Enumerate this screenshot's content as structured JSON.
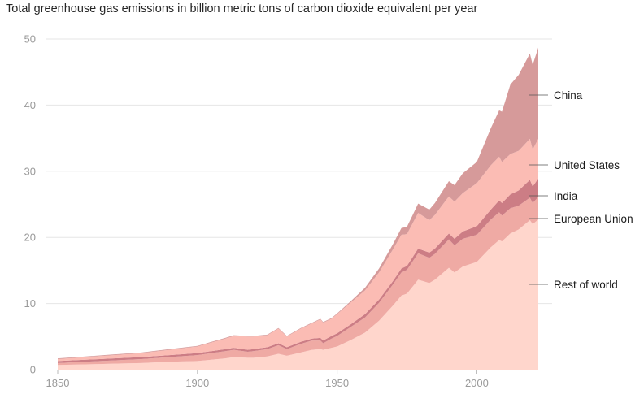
{
  "chart_data": {
    "type": "area",
    "stacked": true,
    "title": "Total greenhouse gas emissions in billion metric tons of carbon dioxide equivalent per year",
    "xlabel": "",
    "ylabel": "",
    "xlim": [
      1850,
      2022
    ],
    "ylim": [
      0,
      50
    ],
    "x_ticks": [
      "1850",
      "1900",
      "1950",
      "2000"
    ],
    "y_ticks": [
      "0",
      "10",
      "20",
      "30",
      "40",
      "50"
    ],
    "grid": true,
    "legend": "right, direct labels",
    "x": [
      1850,
      1860,
      1870,
      1880,
      1890,
      1900,
      1905,
      1910,
      1913,
      1918,
      1920,
      1925,
      1929,
      1932,
      1937,
      1941,
      1944,
      1945,
      1948,
      1950,
      1955,
      1960,
      1965,
      1970,
      1973,
      1975,
      1979,
      1983,
      1985,
      1990,
      1992,
      1995,
      2000,
      2005,
      2008,
      2009,
      2012,
      2015,
      2019,
      2020,
      2022
    ],
    "series": [
      {
        "name": "Rest of world",
        "color": "#ffd6cc",
        "values": [
          0.7,
          0.8,
          0.9,
          1.0,
          1.2,
          1.3,
          1.5,
          1.7,
          1.9,
          1.8,
          1.8,
          2.0,
          2.4,
          2.1,
          2.6,
          3.0,
          3.1,
          3.0,
          3.3,
          3.5,
          4.5,
          5.6,
          7.4,
          9.7,
          11.2,
          11.5,
          13.6,
          13.1,
          13.6,
          15.4,
          14.7,
          15.6,
          16.3,
          18.5,
          19.6,
          19.4,
          20.6,
          21.2,
          22.6,
          22.0,
          22.7
        ]
      },
      {
        "name": "European Union",
        "color": "#efaaa4",
        "values": [
          0.3,
          0.4,
          0.5,
          0.6,
          0.7,
          0.9,
          1.0,
          1.1,
          1.1,
          0.9,
          1.0,
          1.1,
          1.3,
          1.0,
          1.3,
          1.4,
          1.3,
          1.0,
          1.4,
          1.6,
          2.0,
          2.3,
          2.7,
          3.2,
          3.5,
          3.6,
          4.0,
          3.8,
          3.9,
          4.3,
          4.1,
          4.2,
          4.1,
          4.2,
          4.2,
          3.9,
          3.8,
          3.6,
          3.4,
          3.2,
          3.4
        ]
      },
      {
        "name": "India",
        "color": "#cc7d85",
        "values": [
          0.3,
          0.3,
          0.3,
          0.3,
          0.3,
          0.3,
          0.3,
          0.3,
          0.3,
          0.3,
          0.3,
          0.3,
          0.3,
          0.3,
          0.3,
          0.3,
          0.4,
          0.4,
          0.4,
          0.4,
          0.4,
          0.5,
          0.5,
          0.5,
          0.6,
          0.6,
          0.7,
          0.8,
          0.8,
          0.9,
          1.0,
          1.1,
          1.3,
          1.5,
          1.8,
          1.9,
          2.1,
          2.3,
          2.7,
          2.5,
          2.8
        ]
      },
      {
        "name": "United States",
        "color": "#fbbcb4",
        "values": [
          0.3,
          0.4,
          0.5,
          0.6,
          0.8,
          1.0,
          1.3,
          1.6,
          1.8,
          2.0,
          1.9,
          1.8,
          2.2,
          1.6,
          2.0,
          2.3,
          2.8,
          2.7,
          2.6,
          2.9,
          3.3,
          3.6,
          4.1,
          4.8,
          5.1,
          4.8,
          5.4,
          4.9,
          5.1,
          5.6,
          5.6,
          5.8,
          6.5,
          6.7,
          6.6,
          6.2,
          6.1,
          6.0,
          6.2,
          5.6,
          6.0
        ]
      },
      {
        "name": "China",
        "color": "#d69a9a",
        "values": [
          0.1,
          0.1,
          0.1,
          0.1,
          0.1,
          0.1,
          0.1,
          0.1,
          0.1,
          0.1,
          0.1,
          0.1,
          0.1,
          0.1,
          0.1,
          0.1,
          0.1,
          0.1,
          0.1,
          0.1,
          0.2,
          0.4,
          0.6,
          0.8,
          1.0,
          1.1,
          1.4,
          1.6,
          1.8,
          2.3,
          2.5,
          3.0,
          3.2,
          5.6,
          7.0,
          7.6,
          10.5,
          11.5,
          12.9,
          12.8,
          13.8
        ]
      }
    ],
    "annotations": [
      "China",
      "United States",
      "India",
      "European Union",
      "Rest of world"
    ]
  }
}
